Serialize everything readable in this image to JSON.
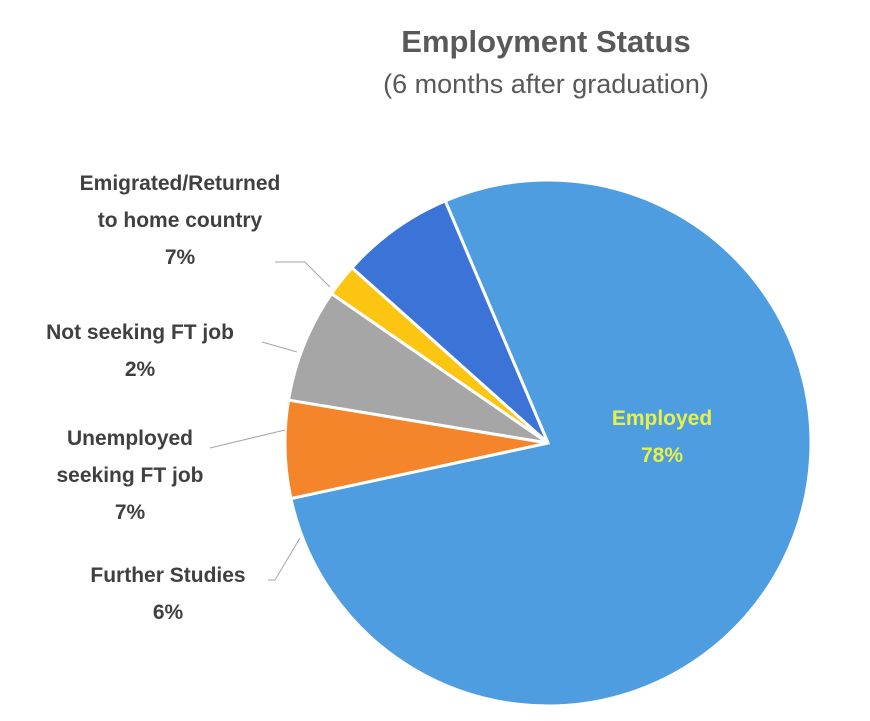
{
  "chart_data": {
    "type": "pie",
    "title": "Employment Status",
    "subtitle": "(6 months after graduation)",
    "slices": [
      {
        "label": "Employed",
        "value": 78,
        "display": "78%",
        "color": "#4e9de0",
        "label_color": "#e8f246"
      },
      {
        "label": "Further Studies",
        "value": 6,
        "display": "6%",
        "color": "#f5852a"
      },
      {
        "label": "Unemployed seeking FT job",
        "value": 7,
        "display": "7%",
        "color": "#a6a6a6"
      },
      {
        "label": "Not seeking FT job",
        "value": 2,
        "display": "2%",
        "color": "#fcc512"
      },
      {
        "label": "Emigrated/Returned to home country",
        "value": 7,
        "display": "7%",
        "color": "#3b73d6"
      }
    ],
    "label_lines": {
      "Employed": [
        "Employed"
      ],
      "Further Studies": [
        "Further Studies"
      ],
      "Unemployed seeking FT job": [
        "Unemployed",
        "seeking FT job"
      ],
      "Not seeking FT job": [
        "Not seeking FT job"
      ],
      "Emigrated/Returned to home country": [
        "Emigrated/Returned",
        "to home country"
      ]
    }
  }
}
